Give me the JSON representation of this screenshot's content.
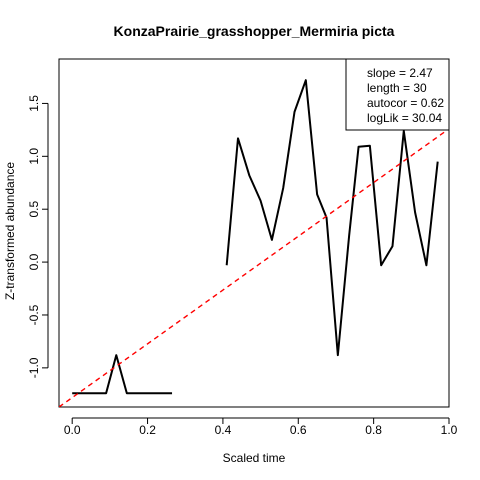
{
  "chart_data": {
    "type": "line",
    "title": "KonzaPrairie_grasshopper_Mermiria picta",
    "xlabel": "Scaled time",
    "ylabel": "Z-transformed abundance",
    "xlim": [
      -0.035,
      1.0
    ],
    "ylim": [
      -1.37,
      1.92
    ],
    "x_ticks": [
      0.0,
      0.2,
      0.4,
      0.6,
      0.8,
      1.0
    ],
    "x_tick_labels": [
      "0.0",
      "0.2",
      "0.4",
      "0.6",
      "0.8",
      "1.0"
    ],
    "y_ticks": [
      -1.0,
      -0.5,
      0.0,
      0.5,
      1.0,
      1.5
    ],
    "y_tick_labels": [
      "-1.0",
      "-0.5",
      "0.0",
      "0.5",
      "1.0",
      "1.5"
    ],
    "grid": false,
    "legend_position": "top-right",
    "legend_entries": [
      "slope = 2.47",
      "length = 30",
      "autocor = 0.62",
      "logLik = 30.04"
    ],
    "series": [
      {
        "color": "#000000",
        "style": "solid",
        "segments": [
          [
            {
              "x": 0.0,
              "y": -1.24
            },
            {
              "x": 0.09,
              "y": -1.24
            },
            {
              "x": 0.117,
              "y": -0.88
            },
            {
              "x": 0.145,
              "y": -1.24
            },
            {
              "x": 0.265,
              "y": -1.24
            }
          ],
          [
            {
              "x": 0.41,
              "y": -0.03
            },
            {
              "x": 0.44,
              "y": 1.17
            },
            {
              "x": 0.47,
              "y": 0.82
            },
            {
              "x": 0.5,
              "y": 0.58
            },
            {
              "x": 0.53,
              "y": 0.21
            },
            {
              "x": 0.56,
              "y": 0.7
            },
            {
              "x": 0.59,
              "y": 1.42
            },
            {
              "x": 0.62,
              "y": 1.72
            },
            {
              "x": 0.65,
              "y": 0.64
            },
            {
              "x": 0.675,
              "y": 0.42
            },
            {
              "x": 0.705,
              "y": -0.88
            },
            {
              "x": 0.735,
              "y": 0.25
            },
            {
              "x": 0.76,
              "y": 1.09
            },
            {
              "x": 0.79,
              "y": 1.1
            },
            {
              "x": 0.82,
              "y": -0.03
            },
            {
              "x": 0.85,
              "y": 0.15
            },
            {
              "x": 0.88,
              "y": 1.24
            },
            {
              "x": 0.91,
              "y": 0.47
            },
            {
              "x": 0.94,
              "y": -0.03
            },
            {
              "x": 0.97,
              "y": 0.95
            }
          ]
        ]
      },
      {
        "color": "#ff0000",
        "style": "dashed",
        "points": [
          {
            "x": -0.035,
            "y": -1.37
          },
          {
            "x": 1.0,
            "y": 1.26
          }
        ]
      }
    ]
  }
}
